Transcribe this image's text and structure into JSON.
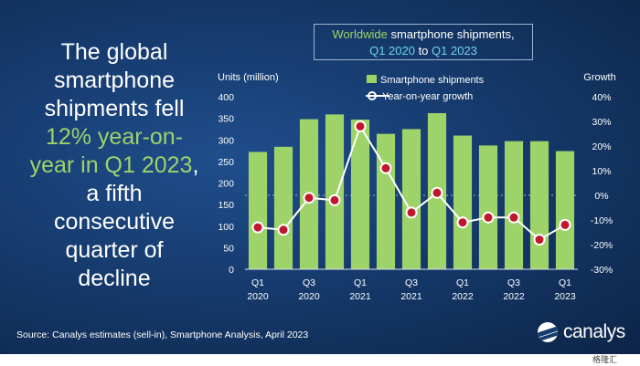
{
  "headline": {
    "line1": "The global",
    "line2": "smartphone",
    "line3": "shipments fell",
    "line4": "12% year-on-",
    "line5_hl": "year in Q1 2023",
    "line5_rest": ",",
    "line6": "a fifth",
    "line7": "consecutive",
    "line8": "quarter of",
    "line9": "decline"
  },
  "subtitle": {
    "part1": "Worldwide",
    "part2": " smartphone shipments,",
    "part3": "Q1 2020",
    "part4": " to ",
    "part5": "Q1 2023"
  },
  "source": "Source: Canalys estimates (sell-in), Smartphone Analysis, April 2023",
  "brand": "canalys",
  "watermark": "格隆汇",
  "colors": {
    "bar": "#9ed36a",
    "line": "#ffffff",
    "marker_fill": "#c0172c",
    "grid": "#9fb6d3"
  },
  "chart_data": {
    "type": "bar",
    "categories": [
      "Q1 2020",
      "Q2 2020",
      "Q3 2020",
      "Q4 2020",
      "Q1 2021",
      "Q2 2021",
      "Q3 2021",
      "Q4 2021",
      "Q1 2022",
      "Q2 2022",
      "Q3 2022",
      "Q4 2022",
      "Q1 2023"
    ],
    "tick_labels": [
      {
        "index": 0,
        "q": "Q1",
        "y": "2020"
      },
      {
        "index": 2,
        "q": "Q3",
        "y": "2020"
      },
      {
        "index": 4,
        "q": "Q1",
        "y": "2021"
      },
      {
        "index": 6,
        "q": "Q3",
        "y": "2021"
      },
      {
        "index": 8,
        "q": "Q1",
        "y": "2022"
      },
      {
        "index": 10,
        "q": "Q3",
        "y": "2022"
      },
      {
        "index": 12,
        "q": "Q1",
        "y": "2023"
      }
    ],
    "series": [
      {
        "name": "Smartphone shipments",
        "type": "bar",
        "axis": "left",
        "values": [
          272,
          284,
          348,
          359,
          347,
          314,
          325,
          362,
          310,
          287,
          297,
          297,
          274
        ]
      },
      {
        "name": "Year-on-year growth",
        "type": "line",
        "axis": "right",
        "values": [
          -13,
          -14,
          -1,
          -2,
          28,
          11,
          -7,
          1,
          -11,
          -9,
          -9,
          -18,
          -12
        ]
      }
    ],
    "ylabel": "Units (million)",
    "y2label": "Growth",
    "ylim": [
      0,
      400
    ],
    "y_ticks": [
      0,
      50,
      100,
      150,
      200,
      250,
      300,
      350,
      400
    ],
    "y2lim": [
      -30,
      40
    ],
    "y2_ticks": [
      "-30%",
      "-20%",
      "-10%",
      "0%",
      "10%",
      "20%",
      "30%",
      "40%"
    ],
    "legend_position": "top"
  }
}
